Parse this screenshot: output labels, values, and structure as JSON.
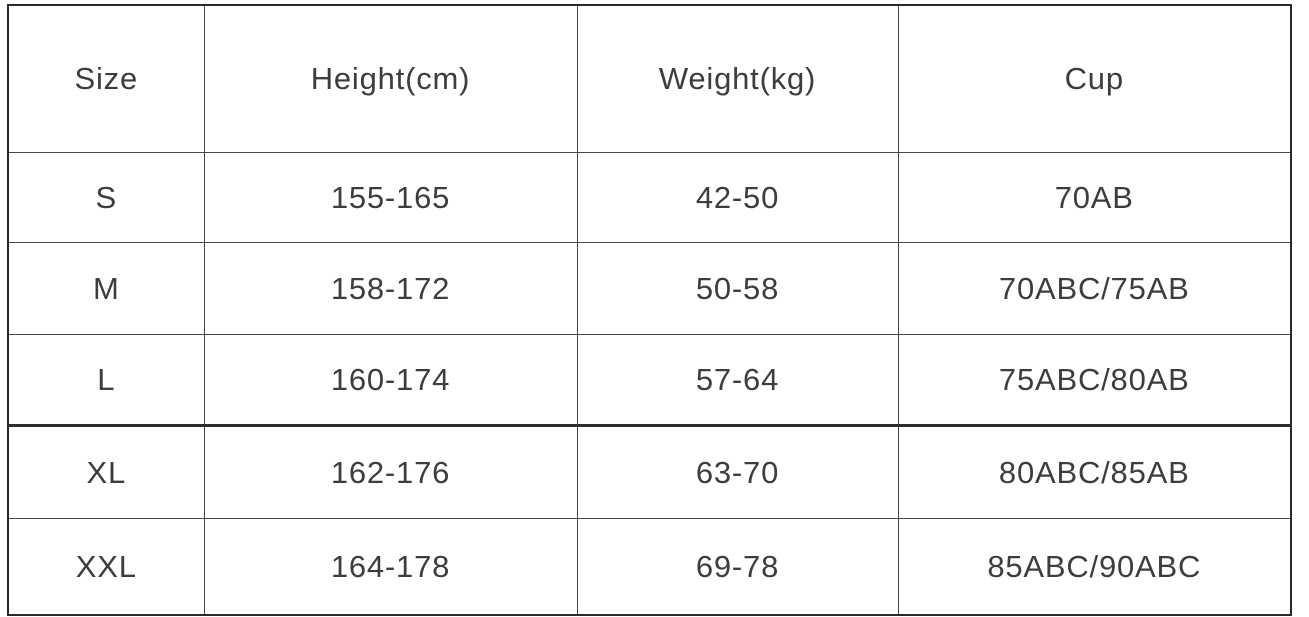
{
  "table": {
    "name": "size-chart",
    "columns": [
      {
        "key": "size",
        "label": "Size"
      },
      {
        "key": "height",
        "label": "Height(cm)"
      },
      {
        "key": "weight",
        "label": "Weight(kg)"
      },
      {
        "key": "cup",
        "label": "Cup"
      }
    ],
    "rows": [
      {
        "size": "S",
        "height": "155-165",
        "weight": "42-50",
        "cup": "70AB"
      },
      {
        "size": "M",
        "height": "158-172",
        "weight": "50-58",
        "cup": "70ABC/75AB"
      },
      {
        "size": "L",
        "height": "160-174",
        "weight": "57-64",
        "cup": "75ABC/80AB"
      },
      {
        "size": "XL",
        "height": "162-176",
        "weight": "63-70",
        "cup": "80ABC/85AB"
      },
      {
        "size": "XXL",
        "height": "164-178",
        "weight": "69-78",
        "cup": "85ABC/90ABC"
      }
    ],
    "colors": {
      "border_outer": "#2a2a2a",
      "border_inner": "#474747",
      "border_heavy": "#2e2e2e",
      "text": "#3d3d3d",
      "background": "#ffffff"
    }
  }
}
